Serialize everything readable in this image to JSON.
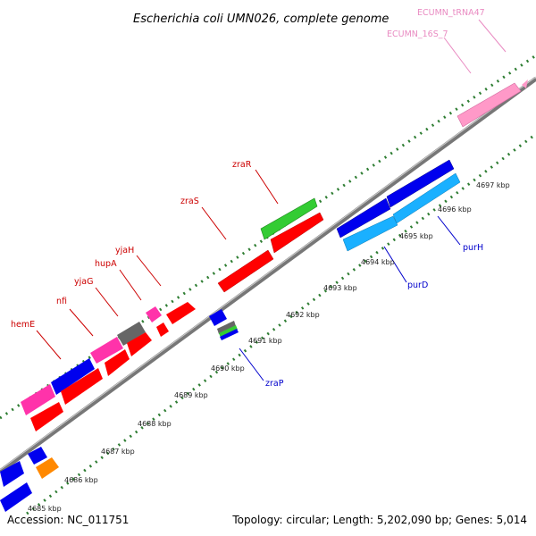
{
  "title": "Escherichia coli UMN026, complete genome",
  "footer": {
    "accession": "Accession: NC_011751",
    "summary": "Topology: circular; Length: 5,202,090 bp; Genes: 5,014"
  },
  "colors": {
    "backbone": "#8a8a8a",
    "tick": "#2e7d32",
    "gene_label": "#cc0000",
    "rna_label": "#e98bc2",
    "reverse_label": "#0000cc",
    "red_feature": "#ff0000",
    "blue_feature": "#0000ee",
    "cyan_feature": "#1ab0ff",
    "green_feature": "#33cc33",
    "magenta_feature": "#ff33aa",
    "gray_feature": "#666666",
    "orange_feature": "#ff8800",
    "pink_feature": "#ff99c8"
  },
  "gene_labels": [
    {
      "name": "ECUMN_tRNA47",
      "kind": "rna"
    },
    {
      "name": "ECUMN_16S_7",
      "kind": "rna"
    },
    {
      "name": "zraR",
      "kind": "forward"
    },
    {
      "name": "zraS",
      "kind": "forward"
    },
    {
      "name": "yjaH",
      "kind": "forward"
    },
    {
      "name": "hupA",
      "kind": "forward"
    },
    {
      "name": "yjaG",
      "kind": "forward"
    },
    {
      "name": "nfi",
      "kind": "forward"
    },
    {
      "name": "hemE",
      "kind": "forward"
    },
    {
      "name": "purH",
      "kind": "reverse"
    },
    {
      "name": "purD",
      "kind": "reverse"
    },
    {
      "name": "zraP",
      "kind": "reverse"
    }
  ],
  "kbp_ticks": [
    {
      "label": "4685 kbp"
    },
    {
      "label": "4686 kbp"
    },
    {
      "label": "4687 kbp"
    },
    {
      "label": "4688 kbp"
    },
    {
      "label": "4689 kbp"
    },
    {
      "label": "4690 kbp"
    },
    {
      "label": "4691 kbp"
    },
    {
      "label": "4692 kbp"
    },
    {
      "label": "4693 kbp"
    },
    {
      "label": "4694 kbp"
    },
    {
      "label": "4695 kbp"
    },
    {
      "label": "4696 kbp"
    },
    {
      "label": "4697 kbp"
    }
  ]
}
